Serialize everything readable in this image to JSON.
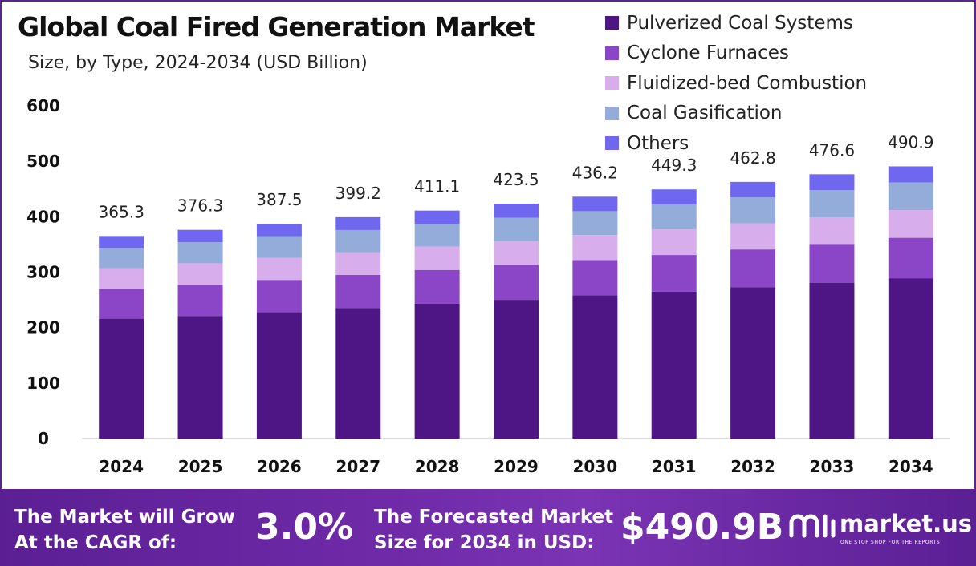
{
  "header": {
    "title": "Global Coal Fired Generation Market",
    "subtitle": "Size, by Type, 2024-2034 (USD Billion)"
  },
  "colors": {
    "series": [
      "#4e1584",
      "#8a46c6",
      "#d8adec",
      "#93acd9",
      "#6f67f0"
    ],
    "footer_bg": "#5b1f94",
    "frame": "#5a2390"
  },
  "chart_data": {
    "type": "bar",
    "stacked": true,
    "title": "Global Coal Fired Generation Market",
    "subtitle": "Size, by Type, 2024-2034 (USD Billion)",
    "categories": [
      "2024",
      "2025",
      "2026",
      "2027",
      "2028",
      "2029",
      "2030",
      "2031",
      "2032",
      "2033",
      "2034"
    ],
    "series": [
      {
        "name": "Pulverized Coal Systems",
        "values": [
          216,
          221,
          228,
          235,
          243,
          250,
          258,
          265,
          273,
          281,
          289
        ]
      },
      {
        "name": "Cyclone Furnaces",
        "values": [
          54,
          56,
          58,
          60,
          61,
          63,
          64,
          66,
          68,
          70,
          73
        ]
      },
      {
        "name": "Fluidized-bed Combustion",
        "values": [
          37,
          39,
          40,
          41,
          42,
          43,
          45,
          46,
          47,
          48,
          50
        ]
      },
      {
        "name": "Coal Gasification",
        "values": [
          37,
          38,
          39,
          40,
          41,
          42,
          43,
          45,
          47,
          49,
          50
        ]
      },
      {
        "name": "Others",
        "values": [
          21.3,
          22.3,
          22.5,
          23.2,
          24.1,
          25.5,
          26.2,
          27.3,
          27.8,
          28.6,
          28.9
        ]
      }
    ],
    "totals": [
      365.3,
      376.3,
      387.5,
      399.2,
      411.1,
      423.5,
      436.2,
      449.3,
      462.8,
      476.6,
      490.9
    ],
    "total_labels": [
      "365.3",
      "376.3",
      "387.5",
      "399.2",
      "411.1",
      "423.5",
      "436.2",
      "449.3",
      "462.8",
      "476.6",
      "490.9"
    ],
    "ylim": [
      0,
      600
    ],
    "yticks": [
      0,
      100,
      200,
      300,
      400,
      500,
      600
    ],
    "grid": false,
    "legend_position": "top-right",
    "xlabel": "",
    "ylabel": ""
  },
  "footer": {
    "cagr_label_line1": "The Market will Grow",
    "cagr_label_line2": "At the CAGR of:",
    "cagr_value": "3.0%",
    "forecast_label_line1": "The Forecasted Market",
    "forecast_label_line2": "Size for 2034 in USD:",
    "forecast_value": "$490.9B",
    "brand_name": "market.us",
    "brand_tagline": "ONE STOP SHOP FOR THE REPORTS"
  }
}
